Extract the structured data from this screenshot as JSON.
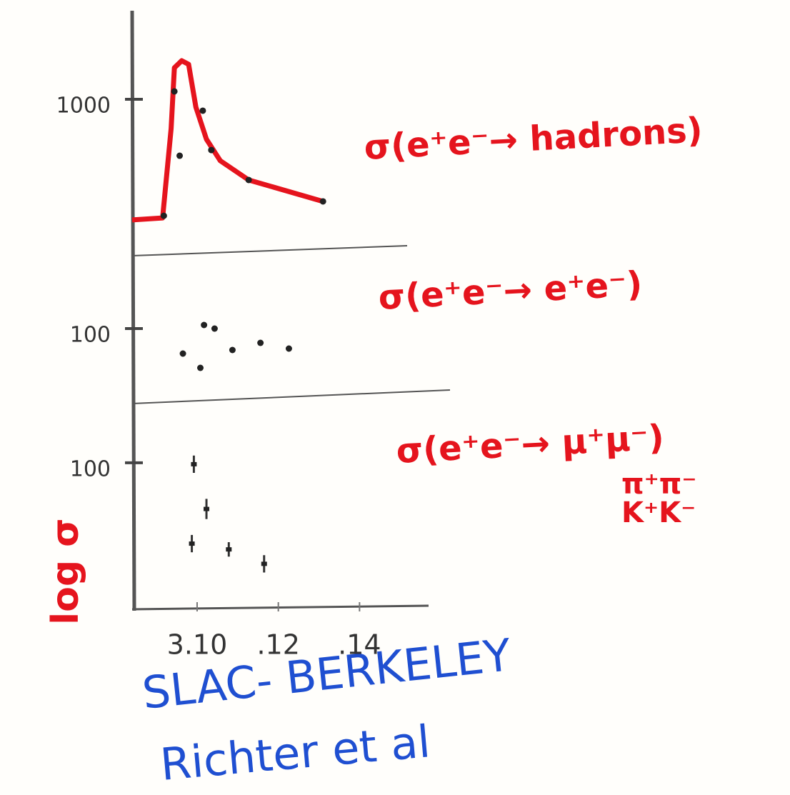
{
  "chart_data": [
    {
      "type": "line",
      "title": "σ(e⁺e⁻→ hadrons)",
      "color": "#e5141d",
      "point_color": "#222222",
      "x": [
        3.084,
        3.0915,
        3.0936,
        3.0944,
        3.0962,
        3.0979,
        3.0997,
        3.1023,
        3.1057,
        3.1127,
        3.131
      ],
      "values": [
        218,
        231,
        810,
        1204,
        1250,
        1227,
        949,
        741,
        602,
        477,
        338
      ],
      "points": {
        "x": [
          3.0918,
          3.0944,
          3.0957,
          3.1014,
          3.1035,
          3.1127,
          3.131
        ],
        "values": [
          245,
          1051,
          634,
          926,
          671,
          477,
          338
        ]
      },
      "xlim": [
        3.084,
        3.157
      ],
      "ylim": [
        0,
        1250
      ],
      "yticks": [
        1000
      ]
    },
    {
      "type": "scatter",
      "title": "σ(e⁺e⁻→ e⁺e⁻)",
      "color": "#e5141d",
      "point_color": "#222222",
      "x": [
        3.0965,
        3.1008,
        3.1017,
        3.1043,
        3.1087,
        3.1156,
        3.1226
      ],
      "values": [
        65,
        45,
        105,
        100,
        70,
        80,
        72
      ],
      "xlim": [
        3.084,
        3.157
      ],
      "ylim": [
        0,
        200
      ],
      "yticks": [
        100
      ]
    },
    {
      "type": "errorbar",
      "title": "σ(e⁺e⁻→ μ⁺μ⁻)",
      "annotations": [
        "π⁺π⁻",
        "K⁺K⁻"
      ],
      "color": "#e5141d",
      "point_color": "#222222",
      "x": [
        3.0992,
        3.1023,
        3.0987,
        3.1078,
        3.1165
      ],
      "values": [
        99,
        68,
        44,
        40,
        30
      ],
      "errors": [
        6,
        7,
        6,
        5,
        6
      ],
      "xlim": [
        3.084,
        3.157
      ],
      "ylim": [
        0,
        141
      ],
      "yticks": [
        100
      ],
      "xticks": [
        {
          "value": 3.1,
          "label": "3.10"
        },
        {
          "value": 3.12,
          "label": ".12"
        },
        {
          "value": 3.14,
          "label": ".14"
        }
      ]
    }
  ],
  "ylabel": "log σ",
  "credit": [
    "SLAC- BERKELEY",
    "Richter et al"
  ]
}
